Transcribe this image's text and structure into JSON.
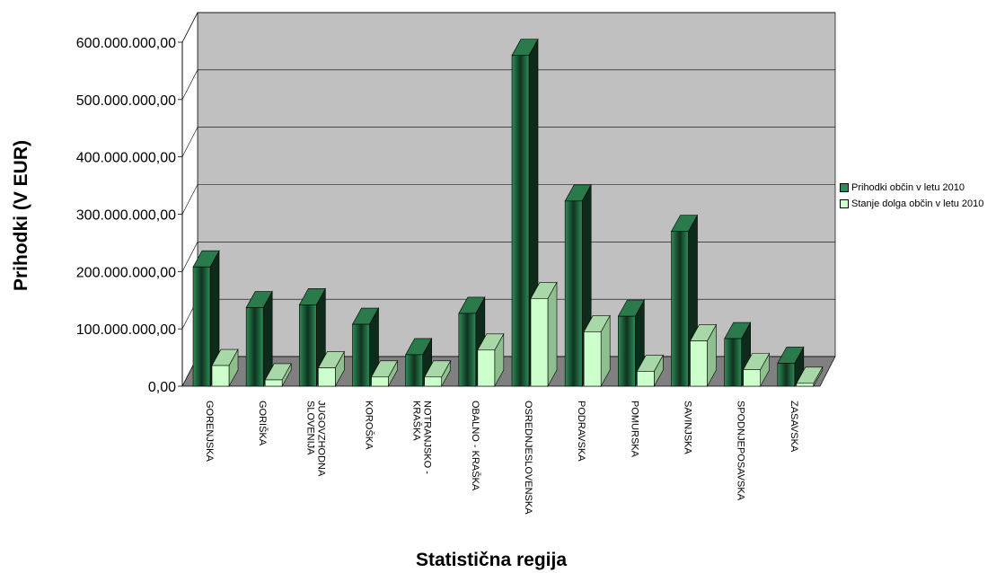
{
  "chart_data": {
    "type": "bar",
    "xlabel": "Statistična regija",
    "ylabel": "Prihodki (V EUR)",
    "ylim": [
      0,
      600000000
    ],
    "yticks": [
      0,
      100000000,
      200000000,
      300000000,
      400000000,
      500000000,
      600000000
    ],
    "ytick_labels": [
      "0,00",
      "100.000.000,00",
      "200.000.000,00",
      "300.000.000,00",
      "400.000.000,00",
      "500.000.000,00",
      "600.000.000,00"
    ],
    "categories": [
      "GORENJSKA",
      "GORIŠKA",
      "JUGOVZHODNA SLOVENIJA",
      "KOROŠKA",
      "NOTRANJSKO - KRAŠKA",
      "OBALNO - KRAŠKA",
      "OSREDNJESLOVENSKA",
      "PODRAVSKA",
      "POMURSKA",
      "SAVINJSKA",
      "SPODNJEPOSAVSKA",
      "ZASAVSKA"
    ],
    "category_lines": [
      [
        "GORENJSKA"
      ],
      [
        "GORIŠKA"
      ],
      [
        "JUGOVZHODNA",
        "SLOVENIJA"
      ],
      [
        "KOROŠKA"
      ],
      [
        "NOTRANJSKO -",
        "KRAŠKA"
      ],
      [
        "OBALNO - KRAŠKA"
      ],
      [
        "OSREDNJESLOVENSKA"
      ],
      [
        "PODRAVSKA"
      ],
      [
        "POMURSKA"
      ],
      [
        "SAVINJSKA"
      ],
      [
        "SPODNJEPOSAVSKA"
      ],
      [
        "ZASAVSKA"
      ]
    ],
    "series": [
      {
        "name": "Prihodki občin v letu 2010",
        "color": "#2e8b57",
        "values": [
          208000000,
          137000000,
          142000000,
          108000000,
          55000000,
          127000000,
          577000000,
          323000000,
          122000000,
          270000000,
          83000000,
          40000000
        ]
      },
      {
        "name": "Stanje dolga občin v letu 2010",
        "color": "#ccffcc",
        "values": [
          36000000,
          11000000,
          32000000,
          16000000,
          16000000,
          63000000,
          153000000,
          95000000,
          26000000,
          79000000,
          29000000,
          5000000
        ]
      }
    ],
    "grid": true,
    "legend_position": "right"
  }
}
